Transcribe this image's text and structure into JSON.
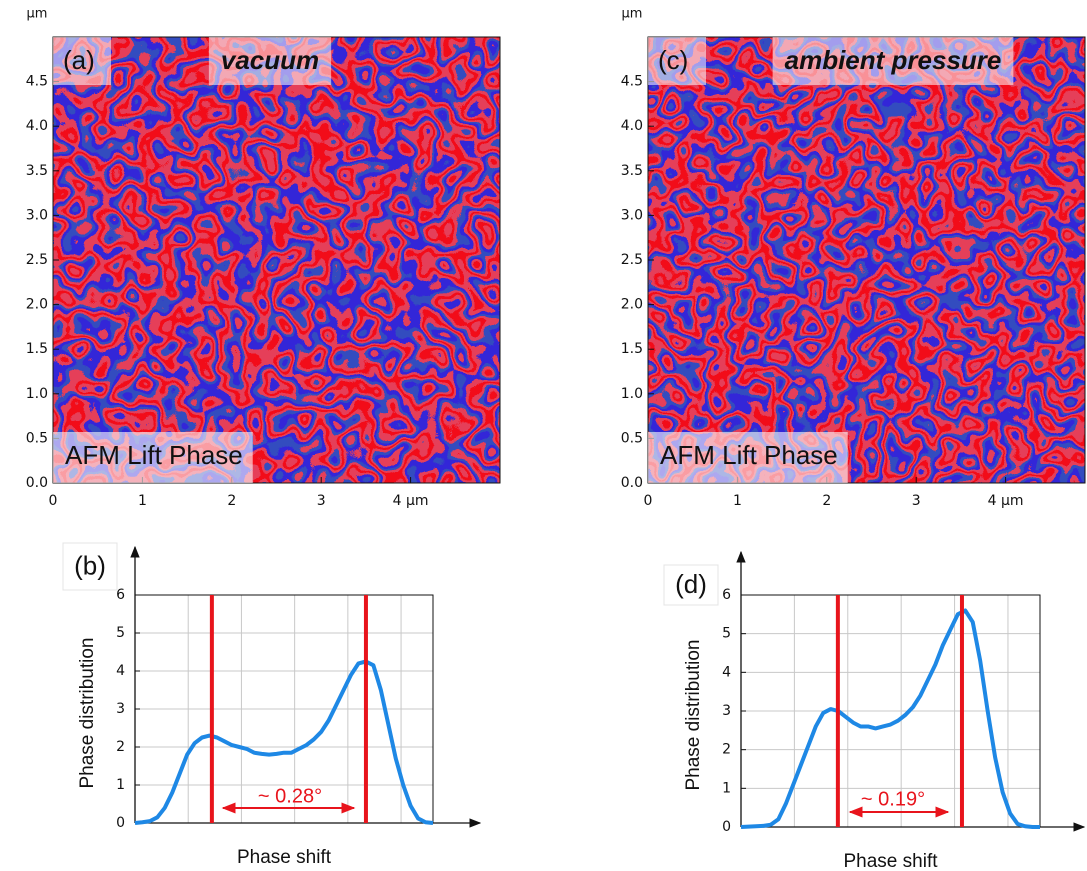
{
  "chart_data": [
    {
      "type": "image",
      "panel_label": "(a)",
      "title": "vacuum",
      "annotation": "AFM Lift Phase",
      "unit": "μm",
      "xlim": [
        0,
        5
      ],
      "ylim": [
        0,
        5
      ],
      "xticks": [
        0,
        1,
        2,
        3,
        {
          "value": 4,
          "label": "4 μm"
        }
      ],
      "yticks": [
        {
          "value": 0,
          "label": "0.0"
        },
        {
          "value": 0.5,
          "label": "0.5"
        },
        {
          "value": 1,
          "label": "1.0"
        },
        {
          "value": 1.5,
          "label": "1.5"
        },
        {
          "value": 2,
          "label": "2.0"
        },
        {
          "value": 2.5,
          "label": "2.5"
        },
        {
          "value": 3,
          "label": "3.0"
        },
        {
          "value": 3.5,
          "label": "3.5"
        },
        {
          "value": 4,
          "label": "4.0"
        },
        {
          "value": 4.5,
          "label": "4.5"
        }
      ]
    },
    {
      "type": "line",
      "panel_label": "(b)",
      "xlabel": "Phase shift",
      "ylabel": "Phase distribution",
      "annotation": "~ 0.28°",
      "color": "#1e88e5",
      "marker_color": "#e8141c",
      "ylim": [
        0,
        6
      ],
      "yticks": [
        0,
        1,
        2,
        3,
        4,
        5,
        6
      ],
      "grid": true,
      "values": [
        0,
        0.02,
        0.05,
        0.15,
        0.4,
        0.8,
        1.3,
        1.8,
        2.1,
        2.25,
        2.3,
        2.25,
        2.15,
        2.05,
        2.0,
        1.95,
        1.85,
        1.82,
        1.8,
        1.82,
        1.85,
        1.85,
        1.95,
        2.05,
        2.2,
        2.4,
        2.7,
        3.1,
        3.5,
        3.9,
        4.2,
        4.25,
        4.15,
        3.5,
        2.6,
        1.7,
        1.0,
        0.45,
        0.12,
        0.02,
        0
      ]
    },
    {
      "type": "image",
      "panel_label": "(c)",
      "title": "ambient pressure",
      "annotation": "AFM Lift Phase",
      "unit": "μm",
      "xlim": [
        0,
        5
      ],
      "ylim": [
        0,
        5
      ],
      "xticks": [
        0,
        1,
        2,
        3,
        {
          "value": 4,
          "label": "4 μm"
        }
      ],
      "yticks": [
        {
          "value": 0,
          "label": "0.0"
        },
        {
          "value": 0.5,
          "label": "0.5"
        },
        {
          "value": 1,
          "label": "1.0"
        },
        {
          "value": 1.5,
          "label": "1.5"
        },
        {
          "value": 2,
          "label": "2.0"
        },
        {
          "value": 2.5,
          "label": "2.5"
        },
        {
          "value": 3,
          "label": "3.0"
        },
        {
          "value": 3.5,
          "label": "3.5"
        },
        {
          "value": 4,
          "label": "4.0"
        },
        {
          "value": 4.5,
          "label": "4.5"
        }
      ]
    },
    {
      "type": "line",
      "panel_label": "(d)",
      "xlabel": "Phase shift",
      "ylabel": "Phase distribution",
      "annotation": "~ 0.19°",
      "color": "#1e88e5",
      "marker_color": "#e8141c",
      "ylim": [
        0,
        6
      ],
      "yticks": [
        0,
        1,
        2,
        3,
        4,
        5,
        6
      ],
      "grid": true,
      "values": [
        0,
        0.01,
        0.02,
        0.03,
        0.06,
        0.2,
        0.6,
        1.1,
        1.6,
        2.1,
        2.6,
        2.95,
        3.05,
        3.0,
        2.85,
        2.7,
        2.6,
        2.6,
        2.55,
        2.6,
        2.65,
        2.75,
        2.9,
        3.1,
        3.4,
        3.8,
        4.2,
        4.7,
        5.1,
        5.5,
        5.6,
        5.3,
        4.3,
        3.0,
        1.8,
        0.9,
        0.35,
        0.08,
        0.02,
        0,
        0
      ]
    }
  ]
}
